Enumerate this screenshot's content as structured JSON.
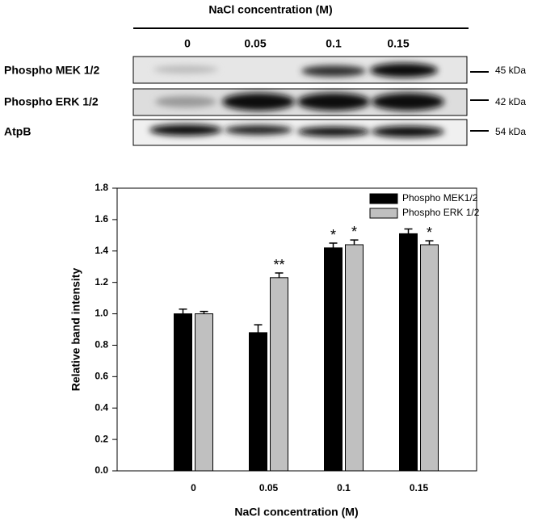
{
  "blot": {
    "title": "NaCl concentration (M)",
    "lanes": [
      "0",
      "0.05",
      "0.1",
      "0.15"
    ],
    "rows": [
      {
        "label": "Phospho MEK 1/2",
        "size": "45 kDa"
      },
      {
        "label": "Phospho ERK 1/2",
        "size": "42 kDa"
      },
      {
        "label": "AtpB",
        "size": "54 kDa"
      }
    ]
  },
  "chart_data": {
    "type": "bar",
    "xlabel": "NaCl concentration (M)",
    "ylabel": "Relative band intensity",
    "categories": [
      "0",
      "0.05",
      "0.1",
      "0.15"
    ],
    "series": [
      {
        "name": "Phospho MEK1/2",
        "color": "#000000",
        "values": [
          1.0,
          0.88,
          1.42,
          1.51
        ],
        "errors": [
          0.03,
          0.05,
          0.03,
          0.03
        ],
        "significance": [
          null,
          null,
          "*",
          null
        ]
      },
      {
        "name": "Phospho ERK 1/2",
        "color": "#c0c0c0",
        "values": [
          1.0,
          1.23,
          1.44,
          1.44
        ],
        "errors": [
          0.015,
          0.03,
          0.03,
          0.025
        ],
        "significance": [
          null,
          "**",
          "*",
          "*"
        ]
      }
    ],
    "ylim": [
      0,
      1.8
    ],
    "yticks": [
      {
        "value": 0,
        "label": "0.0"
      },
      0.2,
      0.4,
      0.6,
      0.8,
      {
        "value": 1,
        "label": "1.0"
      },
      1.2,
      1.4,
      1.6,
      1.8
    ],
    "legend": "top-right"
  }
}
